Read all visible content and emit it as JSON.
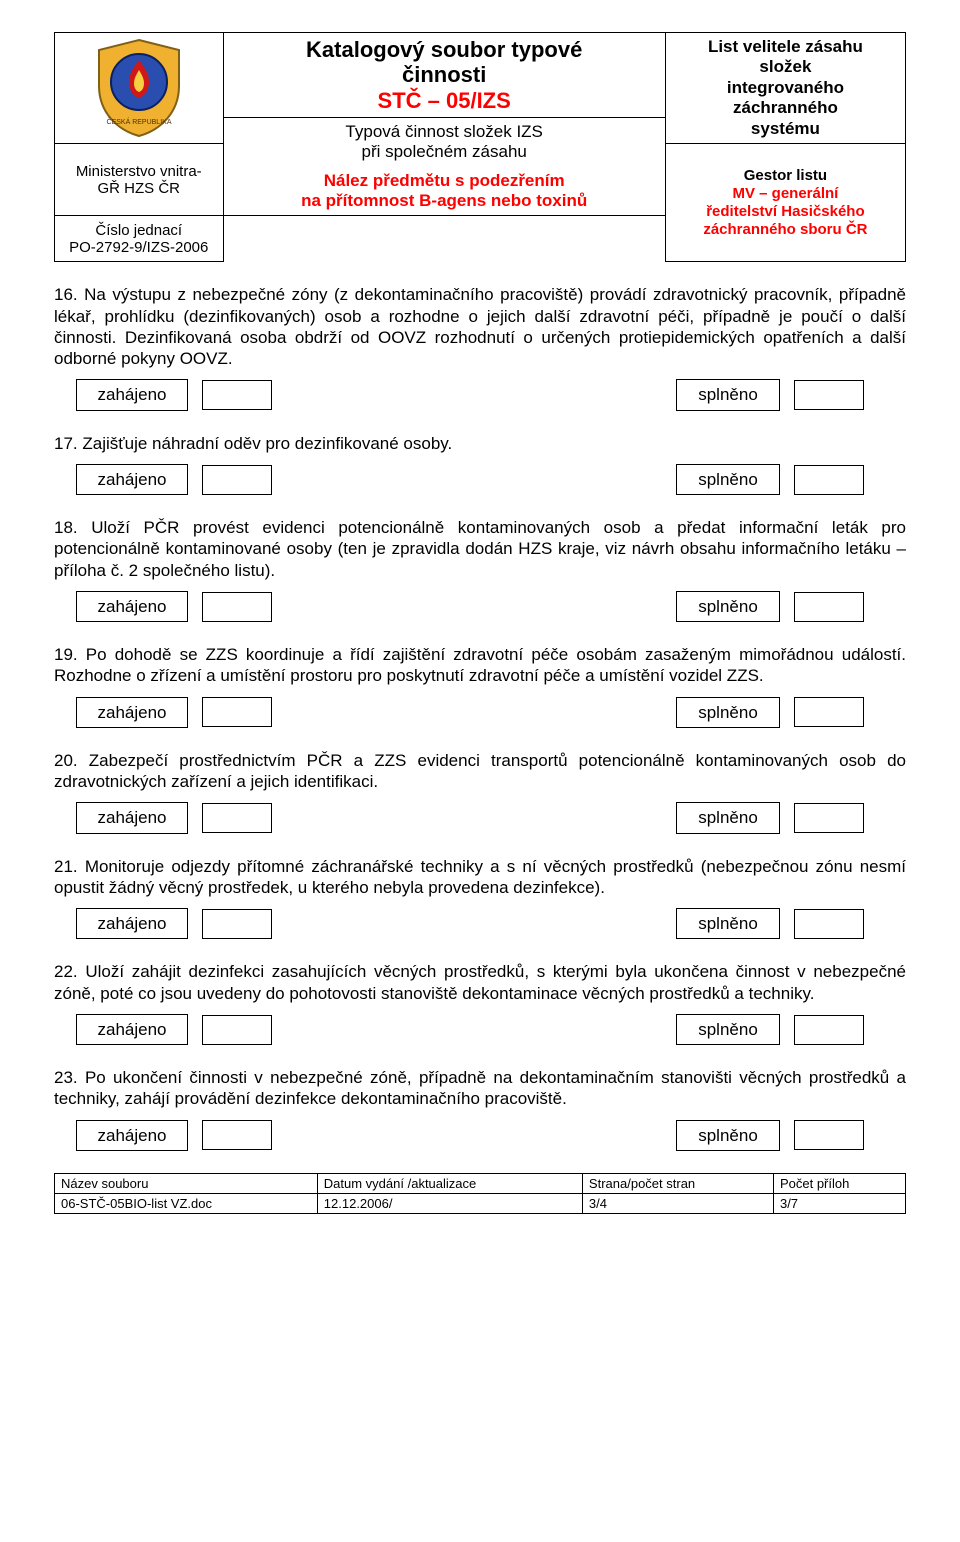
{
  "header": {
    "ministry_line1": "Ministerstvo vnitra-",
    "ministry_line2": "GŘ HZS ČR",
    "ref_label": "Číslo jednací",
    "ref_value": "PO-2792-9/IZS-2006",
    "center_title_l1": "Katalogový soubor typové",
    "center_title_l2": "činnosti",
    "center_code": "STČ – 05/IZS",
    "center_sub_l1": "Typová činnost složek IZS",
    "center_sub_l2": "při společném zásahu",
    "center_find_l1": "Nález předmětu s podezřením",
    "center_find_l2": "na přítomnost B-agens nebo toxinů",
    "right_top_l1": "List velitele zásahu",
    "right_top_l2": "složek",
    "right_top_l3": "integrovaného",
    "right_top_l4": "záchranného",
    "right_top_l5": "systému",
    "right_bottom_l1": "Gestor listu",
    "right_bottom_l2": "MV – generální",
    "right_bottom_l3": "ředitelství Hasičského",
    "right_bottom_l4": "záchranného sboru ČR"
  },
  "status": {
    "started": "zahájeno",
    "done": "splněno"
  },
  "items": [
    {
      "num": "16.",
      "text": "Na výstupu z nebezpečné zóny (z dekontaminačního pracoviště) provádí zdravotnický pracovník, případně lékař, prohlídku (dezinfikovaných) osob a rozhodne o jejich další zdravotní péči, případně je poučí o další činnosti. Dezinfikovaná osoba obdrží od OOVZ rozhodnutí o určených protiepidemických opatřeních a další odborné pokyny OOVZ."
    },
    {
      "num": "17.",
      "text": "Zajišťuje náhradní oděv pro dezinfikované osoby."
    },
    {
      "num": "18.",
      "text": "Uloží PČR provést evidenci potencionálně kontaminovaných osob a předat informační leták pro potencionálně kontaminované osoby (ten je zpravidla dodán HZS kraje, viz návrh obsahu informačního letáku – příloha č. 2 společného listu)."
    },
    {
      "num": "19.",
      "text": "Po dohodě se  ZZS koordinuje a řídí zajištění zdravotní péče osobám zasaženým mimořádnou událostí. Rozhodne o zřízení a umístění prostoru pro poskytnutí zdravotní péče a umístění vozidel ZZS."
    },
    {
      "num": "20.",
      "text": "Zabezpečí prostřednictvím PČR a ZZS evidenci transportů potencionálně kontaminovaných osob do zdravotnických zařízení a jejich identifikaci."
    },
    {
      "num": "21.",
      "text": "Monitoruje odjezdy přítomné záchranářské techniky a s ní věcných prostředků (nebezpečnou zónu nesmí opustit žádný věcný prostředek, u kterého nebyla provedena dezinfekce)."
    },
    {
      "num": "22.",
      "text": "Uloží zahájit dezinfekci zasahujících věcných prostředků, s kterými byla ukončena činnost v nebezpečné zóně, poté co jsou uvedeny do pohotovosti stanoviště dekontaminace věcných prostředků a techniky."
    },
    {
      "num": "23.",
      "text": "Po ukončení činnosti v nebezpečné zóně, případně na dekontaminačním stanovišti věcných prostředků a techniky, zahájí provádění dezinfekce dekontaminačního pracoviště."
    }
  ],
  "footer": {
    "c1h": "Název souboru",
    "c1v": "06-STČ-05BIO-list VZ.doc",
    "c2h": "Datum vydání /aktualizace",
    "c2v": "12.12.2006/",
    "c3h": "Strana/počet stran",
    "c3v": "3/4",
    "c4h": "Počet příloh",
    "c4v": "3/7"
  },
  "colors": {
    "text": "#000000",
    "accent": "#ff0000",
    "bg": "#ffffff",
    "border": "#000000",
    "logo_gold": "#f0b030",
    "logo_blue": "#2a4db0",
    "logo_red": "#d01818",
    "logo_white": "#ffffff"
  }
}
